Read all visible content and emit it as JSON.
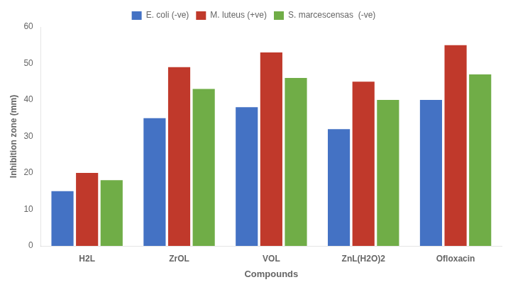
{
  "chart_data": {
    "type": "bar",
    "xlabel": "Compounds",
    "ylabel": "Inhibition zone (mm)",
    "categories": [
      "H2L",
      "ZrOL",
      "VOL",
      "ZnL(H2O)2",
      "Ofloxacin"
    ],
    "series": [
      {
        "name": "E. coli (-ve)",
        "color": "#4472C4",
        "values": [
          15,
          35,
          38,
          32,
          40
        ]
      },
      {
        "name": "M. luteus (+ve)",
        "color": "#C0392B",
        "values": [
          20,
          49,
          53,
          45,
          55
        ]
      },
      {
        "name": "S. marcescensas  (-ve)",
        "color": "#70AD47",
        "values": [
          18,
          43,
          46,
          40,
          47
        ]
      }
    ],
    "ylim": [
      0,
      60
    ],
    "yticks": [
      0,
      10,
      20,
      30,
      40,
      50,
      60
    ],
    "grid": false,
    "legend": "top"
  }
}
